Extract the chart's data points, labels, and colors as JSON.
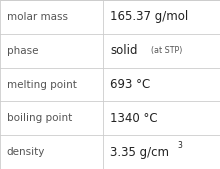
{
  "rows": [
    {
      "label": "molar mass",
      "value": "165.37 g/mol",
      "type": "normal"
    },
    {
      "label": "phase",
      "type": "phase"
    },
    {
      "label": "melting point",
      "value": "693 °C",
      "type": "normal"
    },
    {
      "label": "boiling point",
      "value": "1340 °C",
      "type": "normal"
    },
    {
      "label": "density",
      "type": "density"
    }
  ],
  "col_split": 0.47,
  "background_color": "#ffffff",
  "border_color": "#cccccc",
  "label_color": "#555555",
  "value_color": "#222222",
  "label_fontsize": 7.5,
  "value_fontsize": 8.5,
  "small_fontsize": 5.8,
  "super_fontsize": 5.5
}
